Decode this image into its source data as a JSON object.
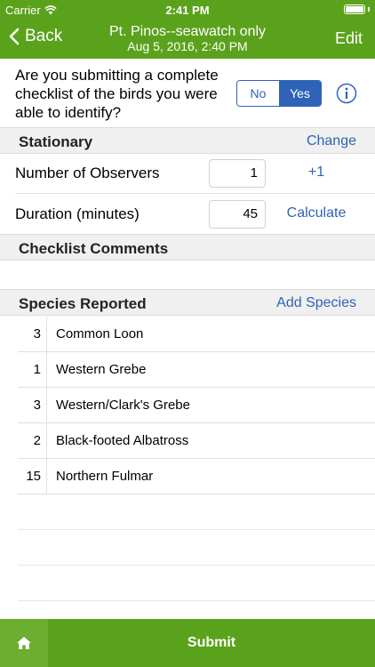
{
  "status_bar": {
    "carrier": "Carrier",
    "time": "2:41 PM"
  },
  "nav": {
    "back_label": "Back",
    "title": "Pt. Pinos--seawatch only",
    "subtitle": "Aug 5, 2016, 2:40 PM",
    "edit_label": "Edit"
  },
  "question": {
    "text": "Are you submitting a complete checklist of the birds you were able to identify?",
    "no_label": "No",
    "yes_label": "Yes",
    "selected": "Yes"
  },
  "protocol": {
    "title": "Stationary",
    "change_label": "Change"
  },
  "observers": {
    "label": "Number of Observers",
    "value": "1",
    "action": "+1"
  },
  "duration": {
    "label": "Duration (minutes)",
    "value": "45",
    "action": "Calculate"
  },
  "comments": {
    "title": "Checklist Comments"
  },
  "species": {
    "title": "Species Reported",
    "add_label": "Add Species",
    "rows": [
      {
        "count": "3",
        "name": "Common Loon"
      },
      {
        "count": "1",
        "name": "Western Grebe"
      },
      {
        "count": "3",
        "name": "Western/Clark's Grebe"
      },
      {
        "count": "2",
        "name": "Black-footed Albatross"
      },
      {
        "count": "15",
        "name": "Northern Fulmar"
      }
    ]
  },
  "bottom": {
    "submit_label": "Submit",
    "home_icon": "home-icon"
  },
  "colors": {
    "brand_green": "#5ba21c",
    "home_green": "#6cae2f",
    "link_blue": "#2f63b8"
  }
}
